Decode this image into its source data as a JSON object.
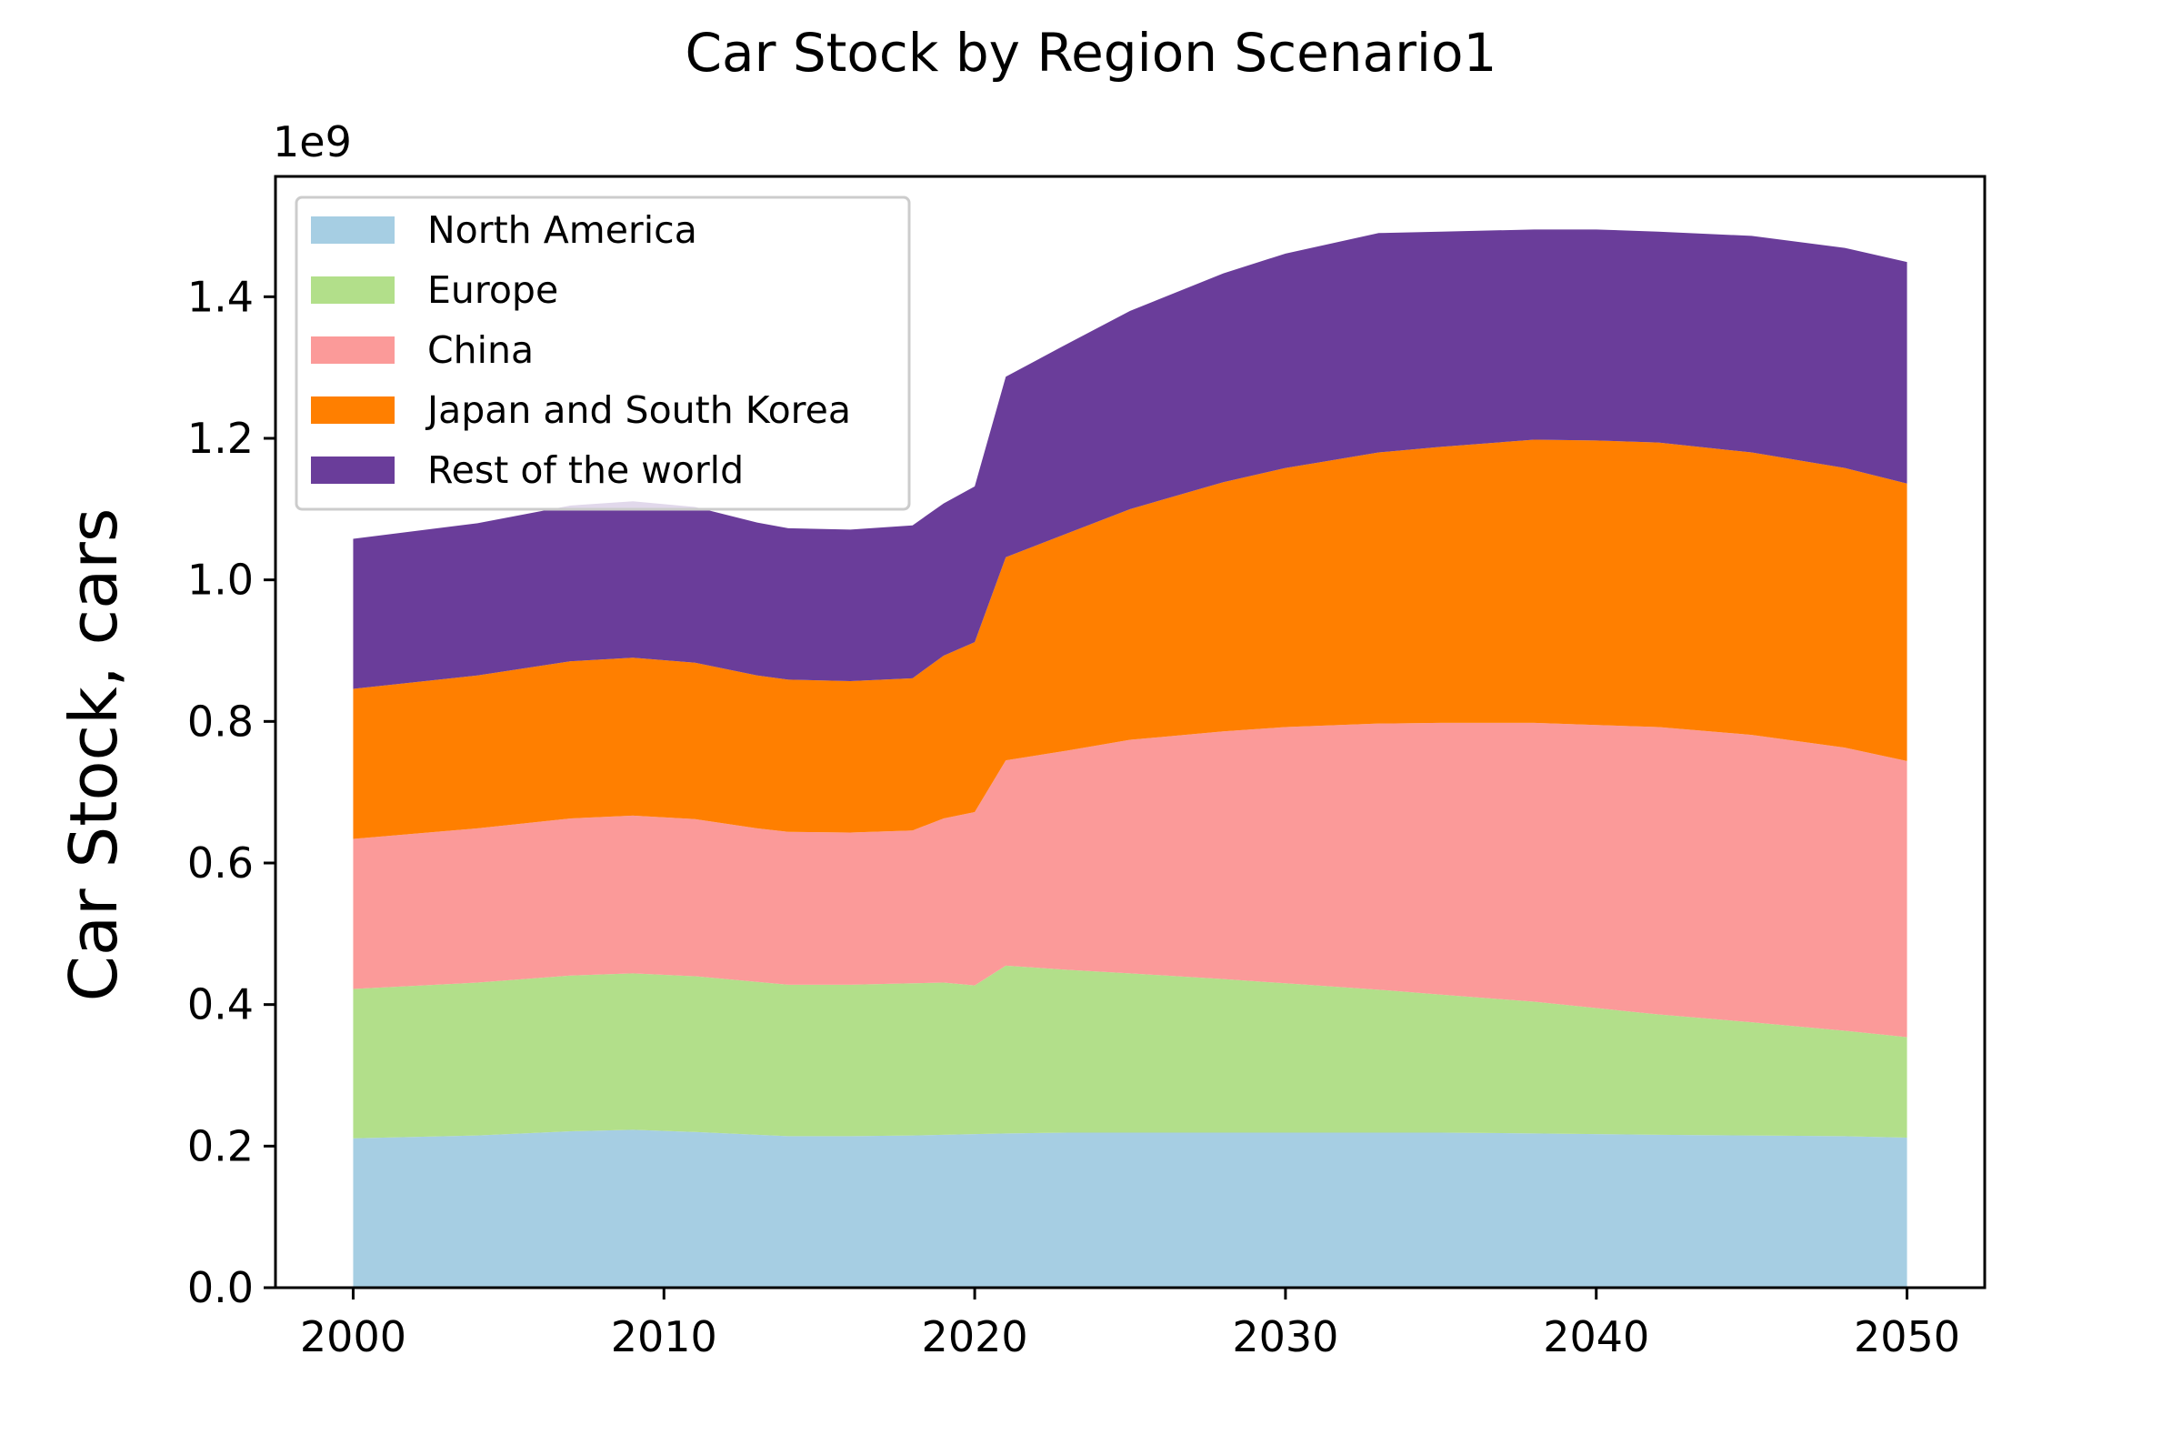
{
  "chart_data": {
    "type": "area",
    "stacked": true,
    "title": "Car Stock by Region Scenario1",
    "xlabel": "",
    "ylabel": "Car Stock, cars",
    "y_offset_label": "1e9",
    "xlim": [
      1997.5,
      2052.5
    ],
    "ylim": [
      0,
      1.57
    ],
    "y_unit_scale": 1000000000,
    "xticks": [
      2000,
      2010,
      2020,
      2030,
      2040,
      2050
    ],
    "xtick_labels": [
      "2000",
      "2010",
      "2020",
      "2030",
      "2040",
      "2050"
    ],
    "yticks": [
      0.0,
      0.2,
      0.4,
      0.6,
      0.8,
      1.0,
      1.2,
      1.4
    ],
    "ytick_labels": [
      "0.0",
      "0.2",
      "0.4",
      "0.6",
      "0.8",
      "1.0",
      "1.2",
      "1.4"
    ],
    "grid": false,
    "legend_position": "top-left",
    "x": [
      2000,
      2004,
      2007,
      2009,
      2011,
      2013,
      2014,
      2016,
      2018,
      2019,
      2020,
      2021,
      2023,
      2025,
      2028,
      2030,
      2033,
      2035,
      2038,
      2040,
      2042,
      2045,
      2048,
      2050
    ],
    "series": [
      {
        "name": "North America",
        "color": "#a6cee3",
        "values": [
          0.211,
          0.215,
          0.221,
          0.223,
          0.22,
          0.216,
          0.214,
          0.214,
          0.215,
          0.216,
          0.217,
          0.218,
          0.219,
          0.219,
          0.219,
          0.219,
          0.219,
          0.219,
          0.218,
          0.217,
          0.216,
          0.215,
          0.214,
          0.212
        ]
      },
      {
        "name": "Europe",
        "color": "#b2df8a",
        "values": [
          0.211,
          0.216,
          0.22,
          0.221,
          0.22,
          0.216,
          0.214,
          0.214,
          0.215,
          0.215,
          0.21,
          0.237,
          0.23,
          0.225,
          0.217,
          0.211,
          0.202,
          0.195,
          0.186,
          0.178,
          0.17,
          0.16,
          0.149,
          0.142
        ]
      },
      {
        "name": "China",
        "color": "#fb9a99",
        "values": [
          0.212,
          0.218,
          0.222,
          0.223,
          0.222,
          0.217,
          0.216,
          0.215,
          0.216,
          0.232,
          0.245,
          0.29,
          0.31,
          0.33,
          0.35,
          0.362,
          0.376,
          0.384,
          0.394,
          0.4,
          0.406,
          0.406,
          0.4,
          0.39
        ]
      },
      {
        "name": "Japan and South Korea",
        "color": "#ff7f00",
        "values": [
          0.212,
          0.216,
          0.222,
          0.223,
          0.221,
          0.216,
          0.215,
          0.214,
          0.215,
          0.23,
          0.24,
          0.287,
          0.307,
          0.326,
          0.352,
          0.366,
          0.383,
          0.39,
          0.4,
          0.402,
          0.402,
          0.399,
          0.395,
          0.392
        ]
      },
      {
        "name": "Rest of the world",
        "color": "#6a3d9a",
        "values": [
          0.212,
          0.215,
          0.22,
          0.221,
          0.22,
          0.216,
          0.214,
          0.214,
          0.216,
          0.215,
          0.22,
          0.255,
          0.268,
          0.28,
          0.295,
          0.303,
          0.31,
          0.304,
          0.297,
          0.298,
          0.298,
          0.306,
          0.311,
          0.313
        ]
      }
    ]
  }
}
